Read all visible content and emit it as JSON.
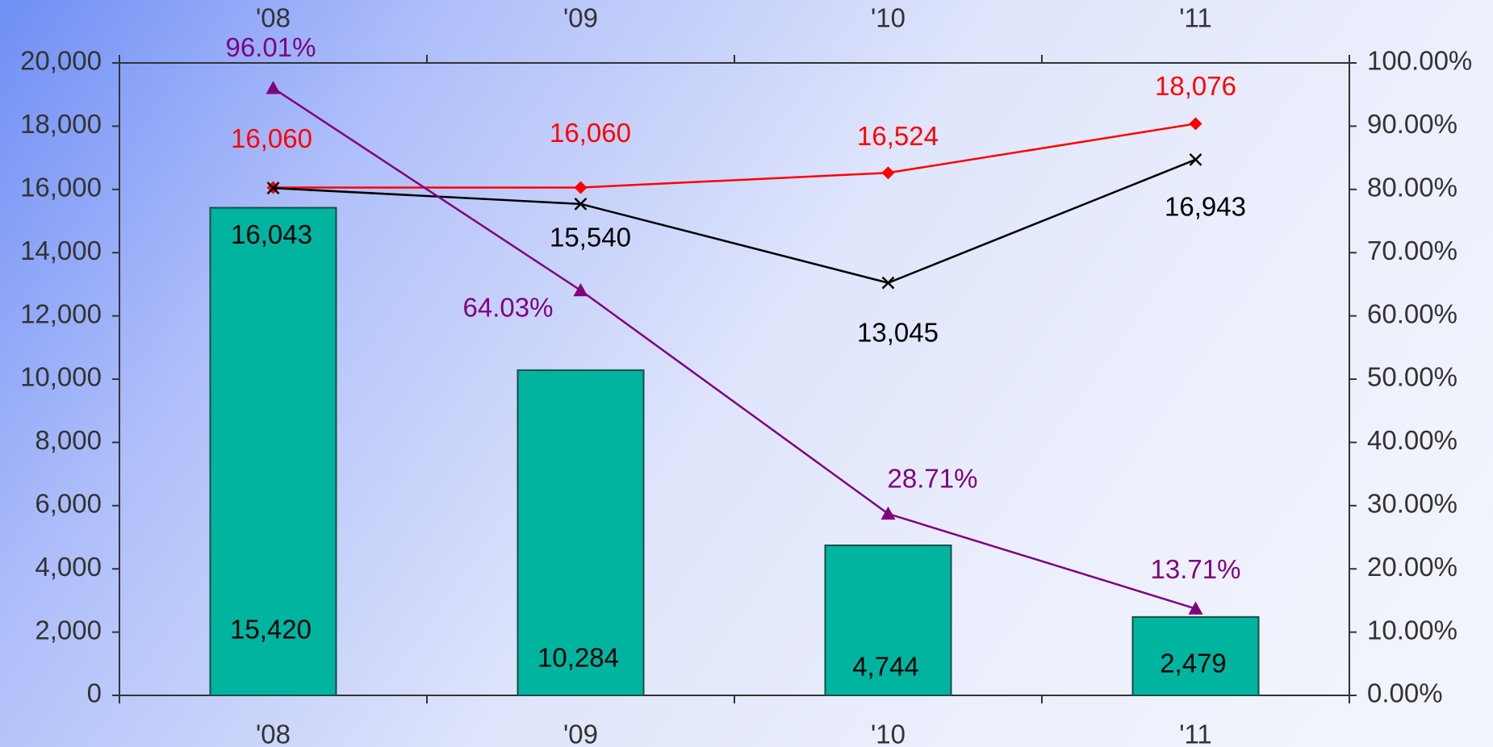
{
  "chart_data": {
    "type": "bar",
    "categories": [
      "'08",
      "'09",
      "'10",
      "'11"
    ],
    "ylim": [
      0,
      20000
    ],
    "y2lim": [
      0,
      1
    ],
    "y_ticks": [
      "0",
      "2,000",
      "4,000",
      "6,000",
      "8,000",
      "10,000",
      "12,000",
      "14,000",
      "16,000",
      "18,000",
      "20,000"
    ],
    "y2_ticks": [
      "0.00%",
      "10.00%",
      "20.00%",
      "30.00%",
      "40.00%",
      "50.00%",
      "60.00%",
      "70.00%",
      "80.00%",
      "90.00%",
      "100.00%"
    ],
    "bar_series": {
      "values": [
        15420,
        10284,
        4744,
        2479
      ],
      "labels": [
        "15,420",
        "10,284",
        "4,744",
        "2,479"
      ],
      "color": "#00b4a0"
    },
    "line_series": [
      {
        "values": [
          16060,
          16060,
          16524,
          18076
        ],
        "labels": [
          "16,060",
          "16,060",
          "16,524",
          "18,076"
        ],
        "color": "#ff0000",
        "marker": "diamond",
        "axis": "left"
      },
      {
        "values": [
          16043,
          15540,
          13045,
          16943
        ],
        "labels": [
          "16,043",
          "15,540",
          "13,045",
          "16,943"
        ],
        "color": "#000000",
        "marker": "x",
        "axis": "left"
      },
      {
        "values": [
          0.9601,
          0.6403,
          0.2871,
          0.1371
        ],
        "labels": [
          "96.01%",
          "64.03%",
          "28.71%",
          "13.71%"
        ],
        "color": "#800080",
        "marker": "triangle",
        "axis": "right"
      }
    ],
    "grid": false,
    "legend": "none"
  }
}
